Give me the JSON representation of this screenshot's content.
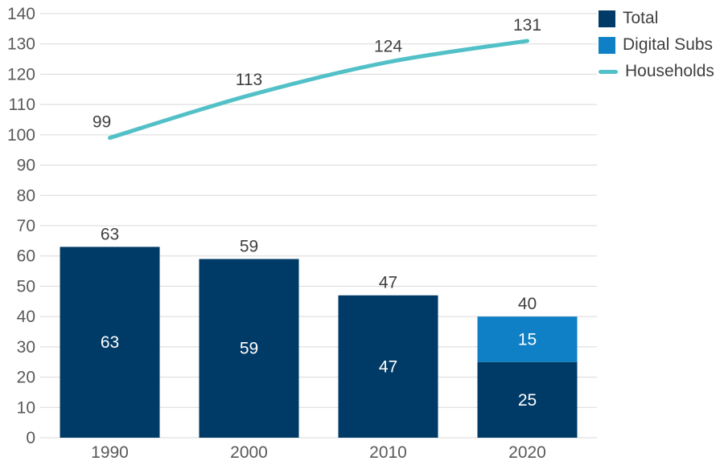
{
  "legend": {
    "items": [
      {
        "label": "Total",
        "color": "#003a66",
        "swatch": "square"
      },
      {
        "label": "Digital Subs",
        "color": "#0f80c5",
        "swatch": "square"
      },
      {
        "label": "Households",
        "color": "#52c0c7",
        "swatch": "line"
      }
    ]
  },
  "chart_data": {
    "type": "combo-bar-line",
    "categories": [
      "1990",
      "2000",
      "2010",
      "2020"
    ],
    "series": [
      {
        "name": "Total",
        "type": "bar",
        "color": "#003a66",
        "values": [
          63,
          59,
          47,
          25
        ]
      },
      {
        "name": "Digital Subs",
        "type": "bar",
        "color": "#0f80c5",
        "stacked_on": "Total",
        "values": [
          0,
          0,
          0,
          15
        ]
      },
      {
        "name": "Households",
        "type": "line",
        "color": "#52c0c7",
        "values": [
          99,
          113,
          124,
          131
        ]
      }
    ],
    "bar_total_labels": [
      "63",
      "59",
      "47",
      "40"
    ],
    "segment_labels": {
      "Total": [
        "63",
        "59",
        "47",
        "25"
      ],
      "Digital Subs": [
        "",
        "",
        "",
        "15"
      ]
    },
    "line_labels": [
      "99",
      "113",
      "124",
      "131"
    ],
    "ylim": [
      0,
      140
    ],
    "ytick_step": 10,
    "grid": true,
    "legend_position": "top-right",
    "colors": {
      "grid": "#d9d9d9",
      "tick_text": "#595959",
      "value_text": "#404040",
      "inside_text": "#ffffff"
    }
  }
}
